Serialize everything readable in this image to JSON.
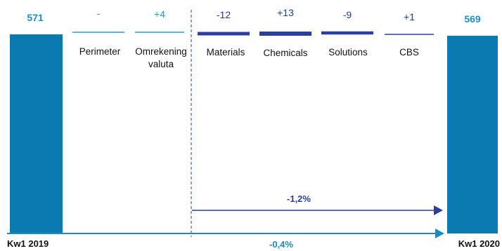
{
  "chart_data": {
    "type": "bar",
    "subtype": "waterfall",
    "start": {
      "label": "Kw1 2019",
      "value": 571,
      "value_label": "571"
    },
    "end": {
      "label": "Kw1 2020",
      "value": 569,
      "value_label": "569"
    },
    "steps": [
      {
        "label": "Perimeter",
        "value": 0,
        "value_label": "-",
        "group": "external"
      },
      {
        "label": "Omrekening valuta",
        "value": 4,
        "value_label": "+4",
        "group": "external"
      },
      {
        "label": "Materials",
        "value": -12,
        "value_label": "-12",
        "group": "segment"
      },
      {
        "label": "Chemicals",
        "value": 13,
        "value_label": "+13",
        "group": "segment"
      },
      {
        "label": "Solutions",
        "value": -9,
        "value_label": "-9",
        "group": "segment"
      },
      {
        "label": "CBS",
        "value": 1,
        "value_label": "+1",
        "group": "segment"
      }
    ],
    "annotations": [
      {
        "text": "-1,2%",
        "scope": "organic"
      },
      {
        "text": "-0,4%",
        "scope": "total"
      }
    ],
    "colors": {
      "total_bar": "#0a7ab0",
      "external_line": "#1f9fd9",
      "segment_line": "#2b3fa0",
      "segment_value": "#1f3f8f",
      "external_value": "#1f9fd9",
      "total_value": "#1a8fd0",
      "organic_arrow": "#2b3fa0",
      "total_arrow": "#1a8ac6",
      "divider": "#1f3f8f"
    }
  }
}
